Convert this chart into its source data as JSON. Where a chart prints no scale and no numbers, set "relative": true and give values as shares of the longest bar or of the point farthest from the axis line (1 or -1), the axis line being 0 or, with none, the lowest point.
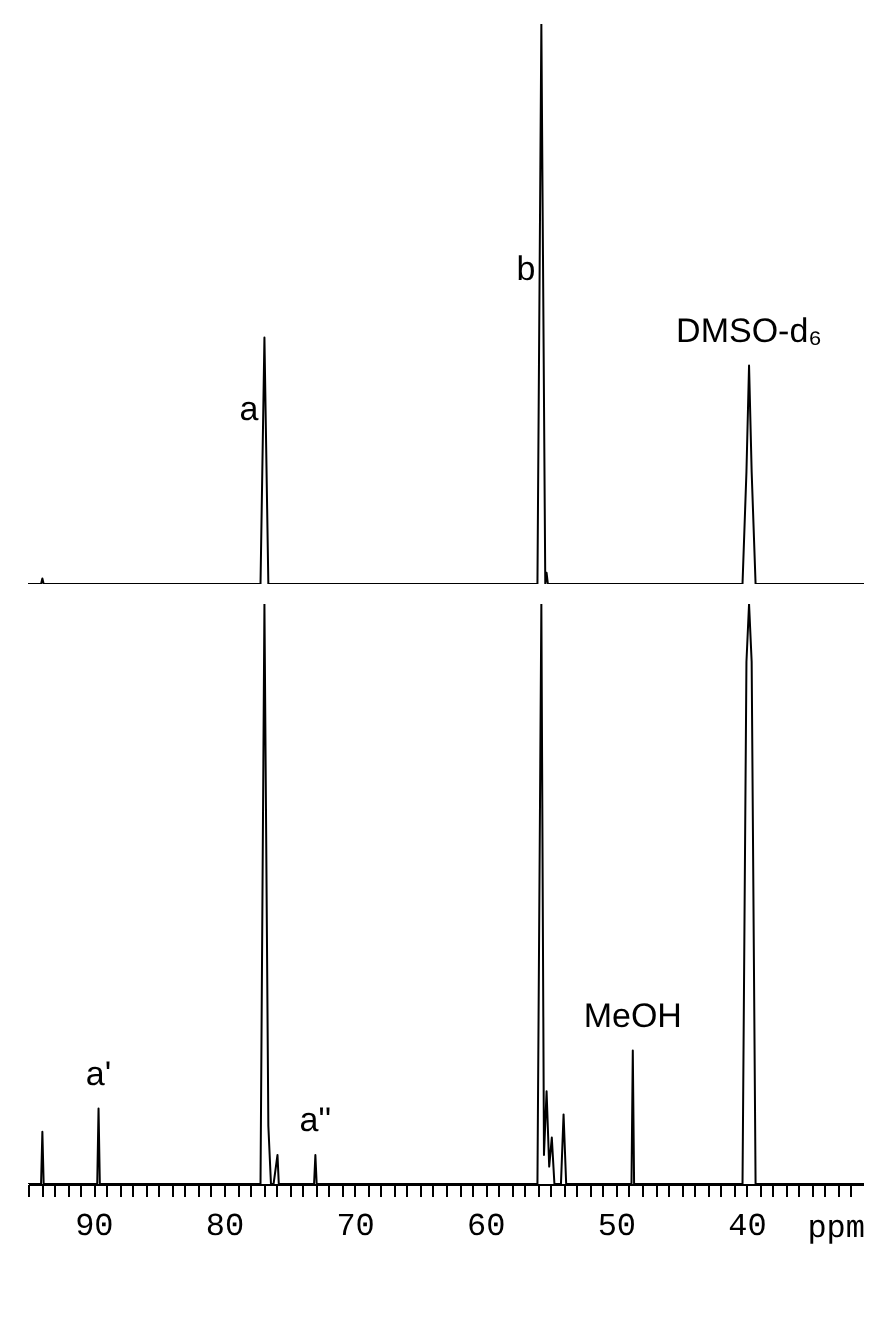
{
  "chart_data": [
    {
      "type": "line",
      "relative": true,
      "xlim": [
        95,
        31
      ],
      "tick_labels": false,
      "series": [
        {
          "color": "#000000",
          "x": [
            95,
            94.0,
            93.9,
            93.8,
            77.2,
            76.9,
            76.6,
            56.0,
            55.7,
            55.4,
            55.3,
            55.2,
            40.3,
            40.0,
            39.8,
            39.6,
            39.3,
            31
          ],
          "values": [
            0,
            0,
            0.01,
            0,
            0,
            0.44,
            0,
            0,
            1,
            0,
            0.02,
            0,
            0,
            0.2,
            0.39,
            0.2,
            0,
            0
          ]
        }
      ],
      "annotations": [
        {
          "text": "a",
          "x": 76.9,
          "y": 0.31
        },
        {
          "text": "b",
          "x": 55.7,
          "y": 0.56
        },
        {
          "text": "DMSO-d₆",
          "x": 39.8,
          "y": 0.39
        }
      ]
    },
    {
      "type": "line",
      "relative": true,
      "xlim": [
        95,
        31
      ],
      "xlabel": "ppm",
      "xticks": [
        {
          "value": 95,
          "label": null
        },
        {
          "value": 94,
          "label": null
        },
        {
          "value": 93,
          "label": null
        },
        {
          "value": 92,
          "label": null
        },
        {
          "value": 91,
          "label": null
        },
        90,
        {
          "value": 89,
          "label": null
        },
        {
          "value": 88,
          "label": null
        },
        {
          "value": 87,
          "label": null
        },
        {
          "value": 86,
          "label": null
        },
        {
          "value": 85,
          "label": null
        },
        {
          "value": 84,
          "label": null
        },
        {
          "value": 83,
          "label": null
        },
        {
          "value": 82,
          "label": null
        },
        {
          "value": 81,
          "label": null
        },
        80,
        {
          "value": 79,
          "label": null
        },
        {
          "value": 78,
          "label": null
        },
        {
          "value": 77,
          "label": null
        },
        {
          "value": 76,
          "label": null
        },
        {
          "value": 75,
          "label": null
        },
        {
          "value": 74,
          "label": null
        },
        {
          "value": 73,
          "label": null
        },
        {
          "value": 72,
          "label": null
        },
        {
          "value": 71,
          "label": null
        },
        70,
        {
          "value": 69,
          "label": null
        },
        {
          "value": 68,
          "label": null
        },
        {
          "value": 67,
          "label": null
        },
        {
          "value": 66,
          "label": null
        },
        {
          "value": 65,
          "label": null
        },
        {
          "value": 64,
          "label": null
        },
        {
          "value": 63,
          "label": null
        },
        {
          "value": 62,
          "label": null
        },
        {
          "value": 61,
          "label": null
        },
        60,
        {
          "value": 59,
          "label": null
        },
        {
          "value": 58,
          "label": null
        },
        {
          "value": 57,
          "label": null
        },
        {
          "value": 56,
          "label": null
        },
        {
          "value": 55,
          "label": null
        },
        {
          "value": 54,
          "label": null
        },
        {
          "value": 53,
          "label": null
        },
        {
          "value": 52,
          "label": null
        },
        {
          "value": 51,
          "label": null
        },
        50,
        {
          "value": 49,
          "label": null
        },
        {
          "value": 48,
          "label": null
        },
        {
          "value": 47,
          "label": null
        },
        {
          "value": 46,
          "label": null
        },
        {
          "value": 45,
          "label": null
        },
        {
          "value": 44,
          "label": null
        },
        {
          "value": 43,
          "label": null
        },
        {
          "value": 42,
          "label": null
        },
        {
          "value": 41,
          "label": null
        },
        40,
        {
          "value": 39,
          "label": null
        },
        {
          "value": 38,
          "label": null
        },
        {
          "value": 37,
          "label": null
        },
        {
          "value": 36,
          "label": null
        },
        {
          "value": 35,
          "label": null
        },
        {
          "value": 34,
          "label": null
        },
        {
          "value": 33,
          "label": null
        },
        {
          "value": 32,
          "label": null
        },
        {
          "value": 31,
          "label": null
        }
      ],
      "series": [
        {
          "color": "#000000",
          "x": [
            95,
            94.0,
            93.9,
            93.8,
            89.7,
            89.6,
            89.5,
            77.2,
            76.9,
            76.6,
            76.4,
            76.2,
            75.9,
            75.8,
            75.7,
            73.1,
            73.0,
            72.9,
            56.0,
            55.7,
            55.5,
            55.3,
            55.1,
            54.9,
            54.7,
            54.2,
            54.0,
            53.8,
            48.8,
            48.7,
            48.6,
            40.3,
            40.0,
            39.8,
            39.6,
            39.3,
            31
          ],
          "values": [
            0,
            0,
            0.09,
            0,
            0,
            0.13,
            0,
            0,
            1,
            0.1,
            0,
            0,
            0.05,
            0,
            0,
            0,
            0.05,
            0,
            0,
            1,
            0.05,
            0.16,
            0.03,
            0.08,
            0,
            0,
            0.12,
            0,
            0,
            0.23,
            0,
            0,
            0.9,
            1,
            0.9,
            0,
            0
          ]
        }
      ],
      "annotations": [
        {
          "text": "a'",
          "x": 89.6,
          "y": 0.13
        },
        {
          "text": "a''",
          "x": 73.0,
          "y": 0.05
        },
        {
          "text": "MeOH",
          "x": 48.7,
          "y": 0.23
        }
      ]
    }
  ]
}
